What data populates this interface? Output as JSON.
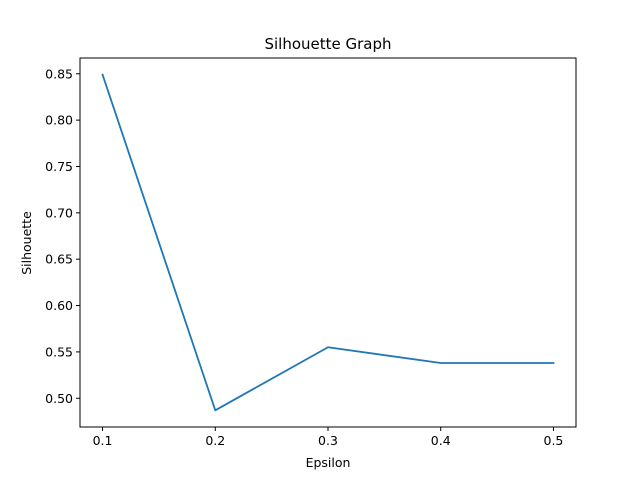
{
  "chart_data": {
    "type": "line",
    "title": "Silhouette Graph",
    "xlabel": "Epsilon",
    "ylabel": "Silhouette",
    "x": [
      0.1,
      0.2,
      0.3,
      0.4,
      0.5
    ],
    "series": [
      {
        "values": [
          0.849,
          0.487,
          0.555,
          0.538,
          0.538
        ],
        "color": "#1f77b4"
      }
    ],
    "xlim": [
      0.08,
      0.52
    ],
    "ylim": [
      0.469,
      0.867
    ],
    "xticks": [
      0.1,
      0.2,
      0.3,
      0.4,
      0.5
    ],
    "xtick_labels": [
      "0.1",
      "0.2",
      "0.3",
      "0.4",
      "0.5"
    ],
    "yticks": [
      0.5,
      0.55,
      0.6,
      0.65,
      0.7,
      0.75,
      0.8,
      0.85
    ],
    "ytick_labels": [
      "0.50",
      "0.55",
      "0.60",
      "0.65",
      "0.70",
      "0.75",
      "0.80",
      "0.85"
    ],
    "grid": false,
    "legend": "none"
  }
}
